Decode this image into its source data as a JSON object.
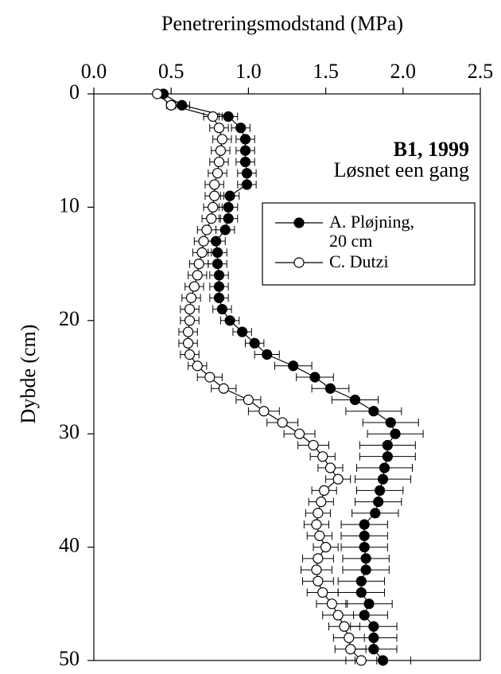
{
  "chart_data": {
    "type": "scatter_errorbar",
    "title": "Penetreringsmodstand (MPa)",
    "y_label": "Dybde (cm)",
    "annotations": [
      "B1, 1999",
      "Løsnet een gang"
    ],
    "depth": [
      0,
      1,
      2,
      3,
      4,
      5,
      6,
      7,
      8,
      9,
      10,
      11,
      12,
      13,
      14,
      15,
      16,
      17,
      18,
      19,
      20,
      21,
      22,
      23,
      24,
      25,
      26,
      27,
      28,
      29,
      30,
      31,
      32,
      33,
      34,
      35,
      36,
      37,
      38,
      39,
      40,
      41,
      42,
      43,
      44,
      45,
      46,
      47,
      48,
      49,
      50
    ],
    "series": [
      {
        "name": "A. Pløjning, 20 cm",
        "color": "#000000",
        "filled": true,
        "values": [
          0.45,
          0.57,
          0.87,
          0.95,
          0.98,
          0.98,
          0.98,
          0.99,
          0.99,
          0.88,
          0.87,
          0.87,
          0.85,
          0.79,
          0.8,
          0.8,
          0.81,
          0.81,
          0.81,
          0.83,
          0.88,
          0.96,
          1.04,
          1.12,
          1.29,
          1.43,
          1.53,
          1.69,
          1.81,
          1.92,
          1.95,
          1.9,
          1.9,
          1.88,
          1.87,
          1.85,
          1.84,
          1.82,
          1.75,
          1.75,
          1.75,
          1.76,
          1.76,
          1.73,
          1.73,
          1.78,
          1.75,
          1.81,
          1.81,
          1.81,
          1.87
        ],
        "errors": [
          0.02,
          0.05,
          0.06,
          0.06,
          0.06,
          0.06,
          0.06,
          0.06,
          0.06,
          0.06,
          0.06,
          0.06,
          0.06,
          0.06,
          0.06,
          0.06,
          0.06,
          0.06,
          0.06,
          0.06,
          0.06,
          0.06,
          0.06,
          0.08,
          0.12,
          0.12,
          0.12,
          0.15,
          0.18,
          0.18,
          0.18,
          0.18,
          0.18,
          0.18,
          0.18,
          0.15,
          0.15,
          0.15,
          0.15,
          0.15,
          0.15,
          0.15,
          0.15,
          0.15,
          0.15,
          0.15,
          0.15,
          0.15,
          0.15,
          0.15,
          0.18
        ]
      },
      {
        "name": "C. Dutzi",
        "color": "#000000",
        "filled": false,
        "values": [
          0.41,
          0.5,
          0.77,
          0.81,
          0.83,
          0.82,
          0.81,
          0.8,
          0.78,
          0.78,
          0.77,
          0.76,
          0.73,
          0.71,
          0.7,
          0.68,
          0.67,
          0.65,
          0.63,
          0.62,
          0.62,
          0.61,
          0.61,
          0.62,
          0.67,
          0.75,
          0.84,
          1.0,
          1.1,
          1.22,
          1.33,
          1.42,
          1.48,
          1.53,
          1.58,
          1.49,
          1.47,
          1.45,
          1.44,
          1.46,
          1.5,
          1.45,
          1.44,
          1.45,
          1.48,
          1.54,
          1.58,
          1.62,
          1.65,
          1.66,
          1.73
        ],
        "errors": [
          0.02,
          0.03,
          0.06,
          0.06,
          0.06,
          0.06,
          0.06,
          0.06,
          0.06,
          0.06,
          0.06,
          0.06,
          0.06,
          0.06,
          0.06,
          0.06,
          0.06,
          0.06,
          0.06,
          0.06,
          0.06,
          0.06,
          0.06,
          0.06,
          0.06,
          0.08,
          0.08,
          0.08,
          0.1,
          0.1,
          0.1,
          0.1,
          0.08,
          0.08,
          0.08,
          0.08,
          0.08,
          0.08,
          0.08,
          0.08,
          0.08,
          0.1,
          0.1,
          0.1,
          0.1,
          0.1,
          0.1,
          0.1,
          0.1,
          0.1,
          0.1
        ]
      }
    ],
    "xlim": [
      0,
      2.5
    ],
    "xticks": [
      {
        "value": 0,
        "label": "0.0"
      },
      0.5,
      {
        "value": 1,
        "label": "1.0"
      },
      1.5,
      {
        "value": 2,
        "label": "2.0"
      },
      2.5
    ],
    "ylim": [
      0,
      50
    ],
    "yticks": [
      0,
      10,
      20,
      30,
      40,
      50
    ],
    "y_inverted": true,
    "x_axis_position": "top",
    "legend": "upper right"
  }
}
